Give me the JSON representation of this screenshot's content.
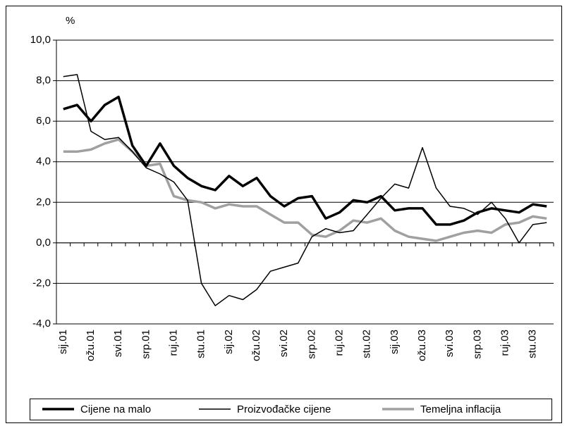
{
  "chart_data": {
    "type": "line",
    "y_label": "%",
    "categories": [
      "sij.01",
      null,
      "ožu.01",
      null,
      "svi.01",
      null,
      "srp.01",
      null,
      "ruj.01",
      null,
      "stu.01",
      null,
      "sij.02",
      null,
      "ožu.02",
      null,
      "svi.02",
      null,
      "srp.02",
      null,
      "ruj.02",
      null,
      "stu.02",
      null,
      "sij.03",
      null,
      "ožu.03",
      null,
      "svi.03",
      null,
      "srp.03",
      null,
      "ruj.03",
      null,
      "stu.03",
      null
    ],
    "series": [
      {
        "name": "Cijene na malo",
        "color": "#000000",
        "width": 3.5,
        "values": [
          6.6,
          6.8,
          6.0,
          6.8,
          7.2,
          4.8,
          3.8,
          4.9,
          3.8,
          3.2,
          2.8,
          2.6,
          3.3,
          2.8,
          3.2,
          2.3,
          1.8,
          2.2,
          2.3,
          1.2,
          1.5,
          2.1,
          2.0,
          2.3,
          1.6,
          1.7,
          1.7,
          0.9,
          0.9,
          1.1,
          1.5,
          1.7,
          1.6,
          1.5,
          1.9,
          1.8
        ]
      },
      {
        "name": "Proizvođačke cijene",
        "color": "#000000",
        "width": 1.5,
        "values": [
          8.2,
          8.3,
          5.5,
          5.1,
          5.2,
          4.5,
          3.7,
          3.4,
          3.0,
          2.1,
          -2.0,
          -3.1,
          -2.6,
          -2.8,
          -2.3,
          -1.4,
          -1.2,
          -1.0,
          0.3,
          0.7,
          0.5,
          0.6,
          1.4,
          2.2,
          2.9,
          2.7,
          4.7,
          2.7,
          1.8,
          1.7,
          1.4,
          2.0,
          1.2,
          0.0,
          0.9,
          1.0
        ]
      },
      {
        "name": "Temeljna inflacija",
        "color": "#a0a0a0",
        "width": 3.5,
        "values": [
          4.5,
          4.5,
          4.6,
          4.9,
          5.1,
          4.5,
          3.8,
          3.9,
          2.3,
          2.1,
          2.0,
          1.7,
          1.9,
          1.8,
          1.8,
          1.4,
          1.0,
          1.0,
          0.4,
          0.3,
          0.6,
          1.1,
          1.0,
          1.2,
          0.6,
          0.3,
          0.2,
          0.1,
          0.3,
          0.5,
          0.6,
          0.5,
          0.9,
          1.0,
          1.3,
          1.2
        ]
      }
    ],
    "ylim": [
      -4,
      10
    ],
    "yticks": [
      {
        "value": -4,
        "label": "-4,0"
      },
      {
        "value": -2,
        "label": "-2,0"
      },
      {
        "value": 0,
        "label": "0,0"
      },
      {
        "value": 2,
        "label": "2,0"
      },
      {
        "value": 4,
        "label": "4,0"
      },
      {
        "value": 6,
        "label": "6,0"
      },
      {
        "value": 8,
        "label": "8,0"
      },
      {
        "value": 10,
        "label": "10,0"
      }
    ],
    "grid": true,
    "legend": "bottom"
  }
}
